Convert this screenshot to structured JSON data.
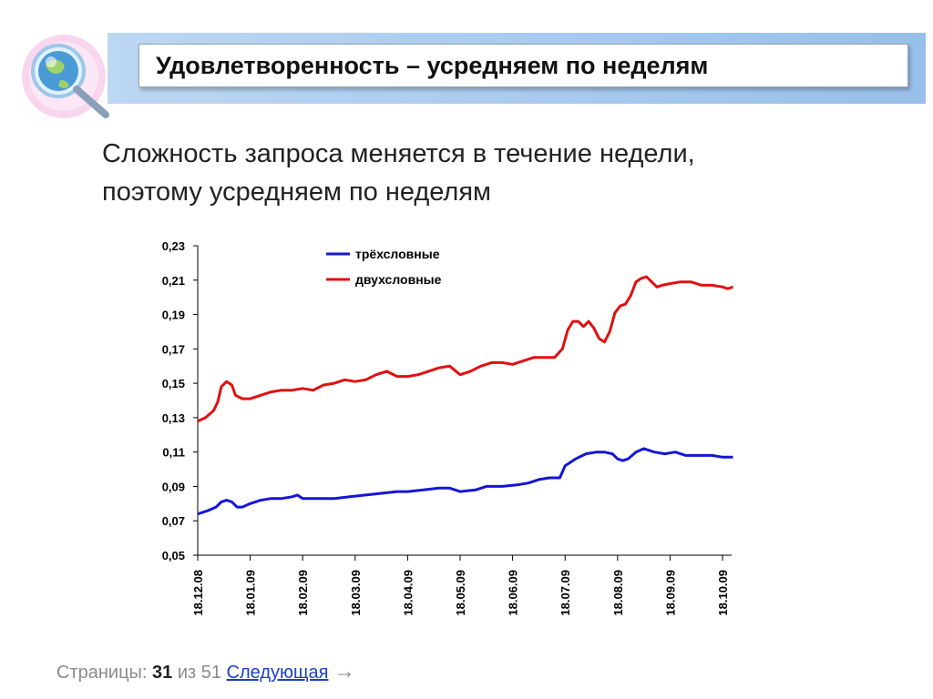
{
  "slide": {
    "title": "Удовлетворенность – усредняем по неделям",
    "body_lines": [
      "Сложность запроса меняется в течение недели,",
      "поэтому усредняем по неделям"
    ]
  },
  "footer": {
    "prefix": "Страницы:",
    "current_page": "31",
    "of_text": "из 51",
    "next_link": "Следующая",
    "arrow": "→"
  },
  "colors": {
    "accent_band": "#aacbee",
    "series_blue": "#1515d6",
    "series_red": "#e01010"
  },
  "icons": {
    "logo": "magnifier-globe-icon"
  },
  "chart_data": {
    "type": "line",
    "x_tick_labels": [
      "18.12.08",
      "18.01.09",
      "18.02.09",
      "18.03.09",
      "18.04.09",
      "18.05.09",
      "18.06.09",
      "18.07.09",
      "18.08.09",
      "18.09.09",
      "18.10.09"
    ],
    "y_tick_labels": [
      "0,05",
      "0,07",
      "0,09",
      "0,11",
      "0,13",
      "0,15",
      "0,17",
      "0,19",
      "0,21",
      "0,23"
    ],
    "ylim": [
      0.05,
      0.23
    ],
    "xlim": [
      0,
      10.2
    ],
    "grid": false,
    "legend_position": "top-left",
    "series": [
      {
        "name": "трёхсловные",
        "color": "#1515d6",
        "points": [
          [
            0,
            0.074
          ],
          [
            0.2,
            0.076
          ],
          [
            0.35,
            0.078
          ],
          [
            0.45,
            0.081
          ],
          [
            0.55,
            0.082
          ],
          [
            0.65,
            0.081
          ],
          [
            0.75,
            0.078
          ],
          [
            0.85,
            0.078
          ],
          [
            1.0,
            0.08
          ],
          [
            1.2,
            0.082
          ],
          [
            1.4,
            0.083
          ],
          [
            1.6,
            0.083
          ],
          [
            1.8,
            0.084
          ],
          [
            1.9,
            0.085
          ],
          [
            2.0,
            0.083
          ],
          [
            2.3,
            0.083
          ],
          [
            2.6,
            0.083
          ],
          [
            2.9,
            0.084
          ],
          [
            3.2,
            0.085
          ],
          [
            3.5,
            0.086
          ],
          [
            3.8,
            0.087
          ],
          [
            4.0,
            0.087
          ],
          [
            4.3,
            0.088
          ],
          [
            4.6,
            0.089
          ],
          [
            4.8,
            0.089
          ],
          [
            5.0,
            0.087
          ],
          [
            5.3,
            0.088
          ],
          [
            5.5,
            0.09
          ],
          [
            5.8,
            0.09
          ],
          [
            6.1,
            0.091
          ],
          [
            6.3,
            0.092
          ],
          [
            6.5,
            0.094
          ],
          [
            6.7,
            0.095
          ],
          [
            6.9,
            0.095
          ],
          [
            7.0,
            0.102
          ],
          [
            7.2,
            0.106
          ],
          [
            7.4,
            0.109
          ],
          [
            7.6,
            0.11
          ],
          [
            7.75,
            0.11
          ],
          [
            7.9,
            0.109
          ],
          [
            8.0,
            0.106
          ],
          [
            8.1,
            0.105
          ],
          [
            8.2,
            0.106
          ],
          [
            8.35,
            0.11
          ],
          [
            8.5,
            0.112
          ],
          [
            8.7,
            0.11
          ],
          [
            8.9,
            0.109
          ],
          [
            9.1,
            0.11
          ],
          [
            9.3,
            0.108
          ],
          [
            9.6,
            0.108
          ],
          [
            9.8,
            0.108
          ],
          [
            10.0,
            0.107
          ],
          [
            10.2,
            0.107
          ]
        ]
      },
      {
        "name": "двухсловные",
        "color": "#e01010",
        "points": [
          [
            0,
            0.128
          ],
          [
            0.15,
            0.13
          ],
          [
            0.3,
            0.134
          ],
          [
            0.38,
            0.139
          ],
          [
            0.45,
            0.148
          ],
          [
            0.55,
            0.151
          ],
          [
            0.65,
            0.149
          ],
          [
            0.72,
            0.143
          ],
          [
            0.85,
            0.141
          ],
          [
            1.0,
            0.141
          ],
          [
            1.2,
            0.143
          ],
          [
            1.4,
            0.145
          ],
          [
            1.6,
            0.146
          ],
          [
            1.8,
            0.146
          ],
          [
            2.0,
            0.147
          ],
          [
            2.2,
            0.146
          ],
          [
            2.4,
            0.149
          ],
          [
            2.6,
            0.15
          ],
          [
            2.8,
            0.152
          ],
          [
            3.0,
            0.151
          ],
          [
            3.2,
            0.152
          ],
          [
            3.4,
            0.155
          ],
          [
            3.6,
            0.157
          ],
          [
            3.8,
            0.154
          ],
          [
            4.0,
            0.154
          ],
          [
            4.2,
            0.155
          ],
          [
            4.4,
            0.157
          ],
          [
            4.6,
            0.159
          ],
          [
            4.8,
            0.16
          ],
          [
            5.0,
            0.155
          ],
          [
            5.2,
            0.157
          ],
          [
            5.4,
            0.16
          ],
          [
            5.6,
            0.162
          ],
          [
            5.8,
            0.162
          ],
          [
            6.0,
            0.161
          ],
          [
            6.2,
            0.163
          ],
          [
            6.4,
            0.165
          ],
          [
            6.6,
            0.165
          ],
          [
            6.8,
            0.165
          ],
          [
            6.95,
            0.17
          ],
          [
            7.05,
            0.181
          ],
          [
            7.15,
            0.186
          ],
          [
            7.25,
            0.186
          ],
          [
            7.35,
            0.183
          ],
          [
            7.45,
            0.186
          ],
          [
            7.55,
            0.182
          ],
          [
            7.65,
            0.176
          ],
          [
            7.75,
            0.174
          ],
          [
            7.85,
            0.18
          ],
          [
            7.95,
            0.191
          ],
          [
            8.05,
            0.195
          ],
          [
            8.15,
            0.196
          ],
          [
            8.25,
            0.201
          ],
          [
            8.35,
            0.209
          ],
          [
            8.45,
            0.211
          ],
          [
            8.55,
            0.212
          ],
          [
            8.65,
            0.209
          ],
          [
            8.75,
            0.206
          ],
          [
            8.85,
            0.207
          ],
          [
            9.0,
            0.208
          ],
          [
            9.2,
            0.209
          ],
          [
            9.4,
            0.209
          ],
          [
            9.6,
            0.207
          ],
          [
            9.8,
            0.207
          ],
          [
            10.0,
            0.206
          ],
          [
            10.1,
            0.205
          ],
          [
            10.2,
            0.206
          ]
        ]
      }
    ]
  }
}
